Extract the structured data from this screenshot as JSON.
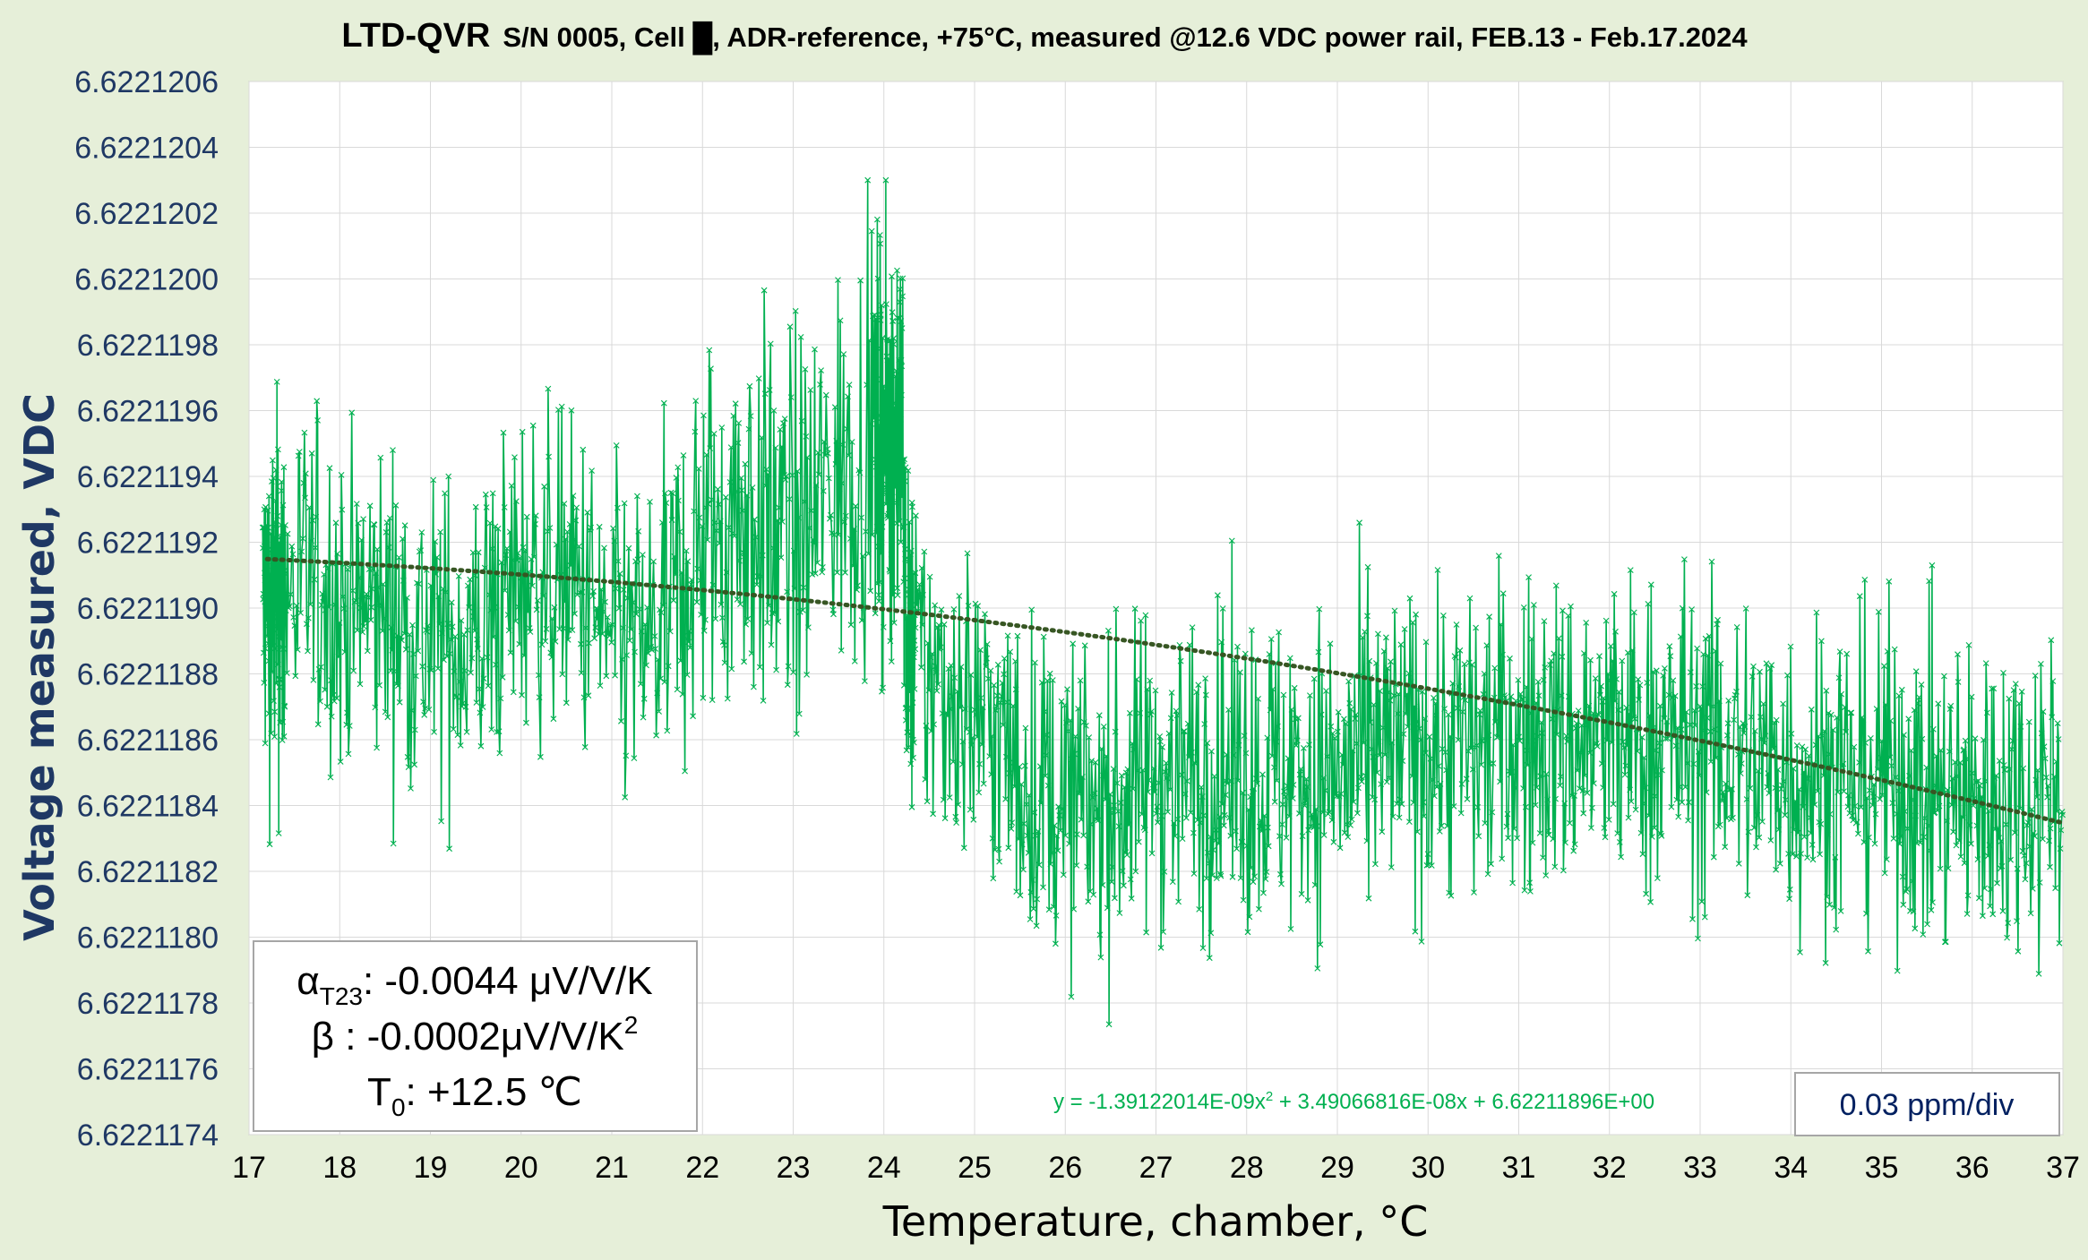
{
  "chart_data": {
    "type": "scatter",
    "title": {
      "brand": "LTD-QVR",
      "text": "S/N 0005, Cell █, ADR-reference, +75°C, measured @12.6 VDC power rail, FEB.13 - Feb.17.2024"
    },
    "xlabel": "Temperature, chamber, °C",
    "ylabel": "Voltage measured, VDC",
    "xlim": [
      17,
      37
    ],
    "ylim": [
      6.6221174,
      6.6221206
    ],
    "x_ticks": [
      "17",
      "18",
      "19",
      "20",
      "21",
      "22",
      "23",
      "24",
      "25",
      "26",
      "27",
      "28",
      "29",
      "30",
      "31",
      "32",
      "33",
      "34",
      "35",
      "36",
      "37"
    ],
    "y_ticks": [
      "6.6221174",
      "6.6221176",
      "6.6221178",
      "6.6221180",
      "6.6221182",
      "6.6221184",
      "6.6221186",
      "6.6221188",
      "6.6221190",
      "6.6221192",
      "6.6221194",
      "6.6221196",
      "6.6221198",
      "6.6221200",
      "6.6221202",
      "6.6221204",
      "6.6221206"
    ],
    "grid": true,
    "legend": "none",
    "series": [
      {
        "label_hidden": true,
        "color": "#00b050",
        "marker": "x",
        "line": "solid",
        "profile": {
          "x": [
            17.15,
            17.3,
            17.6,
            18.0,
            18.5,
            19.0,
            19.5,
            20.0,
            20.5,
            21.0,
            21.5,
            22.0,
            22.5,
            23.0,
            23.5,
            23.8,
            24.0,
            24.2,
            24.25,
            24.5,
            25.0,
            25.5,
            26.0,
            26.5,
            27.0,
            28.0,
            29.0,
            30.0,
            31.0,
            32.0,
            33.0,
            34.0,
            35.0,
            36.0,
            37.0
          ],
          "y_mean": [
            6.622119,
            6.622119,
            6.6221191,
            6.622119,
            6.622119,
            6.6221189,
            6.6221189,
            6.6221191,
            6.6221191,
            6.6221189,
            6.6221189,
            6.6221192,
            6.6221193,
            6.6221192,
            6.6221194,
            6.6221195,
            6.6221195,
            6.6221196,
            6.6221189,
            6.6221188,
            6.6221187,
            6.6221185,
            6.6221184,
            6.6221184,
            6.6221185,
            6.6221185,
            6.6221185,
            6.6221186,
            6.6221186,
            6.6221186,
            6.6221186,
            6.6221185,
            6.6221185,
            6.6221184,
            6.6221185
          ],
          "y_spread": [
            4e-07,
            5e-07,
            4e-07,
            4e-07,
            4e-07,
            4e-07,
            4e-07,
            4e-07,
            4e-07,
            4e-07,
            4e-07,
            5e-07,
            5e-07,
            5e-07,
            5e-07,
            5e-07,
            5e-07,
            5e-07,
            4e-07,
            4e-07,
            4e-07,
            4e-07,
            4e-07,
            4e-07,
            4e-07,
            4e-07,
            4e-07,
            4e-07,
            4e-07,
            4e-07,
            4e-07,
            4e-07,
            4e-07,
            4e-07,
            4e-07
          ],
          "y_min": 6.6221177,
          "y_max": 6.6221203
        }
      }
    ],
    "trendline": {
      "type": "polynomial-2",
      "style": "dotted",
      "color": "#375623",
      "coefficients": [
        -1.39122014e-09,
        3.49066816e-08,
        6.62211896
      ],
      "equation_text": "y = -1.39122014E-09x",
      "equation_sup": "2",
      "equation_rest": " + 3.49066816E-08x + 6.62211896E+00",
      "equation_color": "#00b050"
    },
    "annotation_box": {
      "alpha_symbol": "α",
      "alpha_sub": "T23",
      "alpha_value": ": -0.0044 μV/V/K",
      "beta_line": "β : -0.0002μV/V/K",
      "beta_sup": "2",
      "t0_symbol": "T",
      "t0_sub": "0",
      "t0_value": ": +12.5 ℃"
    },
    "scale_box": "0.03 ppm/div",
    "colors": {
      "background": "#e6efd9",
      "plot_area": "#ffffff",
      "grid": "#d9d9d9",
      "axis_text": "#1f3864",
      "series": "#00b050",
      "trendline": "#375623"
    }
  }
}
